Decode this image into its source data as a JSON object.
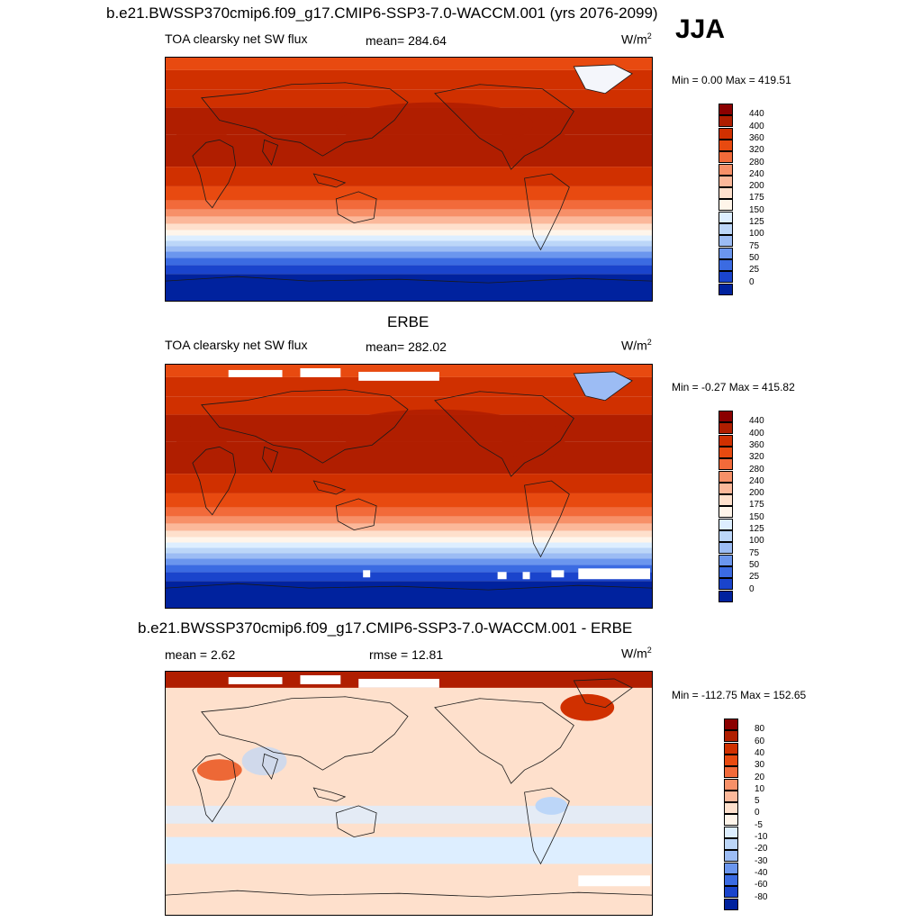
{
  "header": {
    "title": "b.e21.BWSSP370cmip6.f09_g17.CMIP6-SSP3-7.0-WACCM.001 (yrs 2076-2099)",
    "season": "JJA"
  },
  "panels": [
    {
      "id": "model",
      "title": "",
      "left_label": "TOA clearsky net SW flux",
      "center_label": "mean= 284.64",
      "units": "W/m",
      "units_sup": "2",
      "minmax": "Min =   0.00 Max = 419.51",
      "colorbar": {
        "ticks": [
          "440",
          "400",
          "360",
          "320",
          "280",
          "240",
          "200",
          "175",
          "150",
          "125",
          "100",
          "75",
          "50",
          "25",
          "0"
        ],
        "colors": [
          "#8b0000",
          "#b01e00",
          "#d03000",
          "#e84a10",
          "#f26a3a",
          "#f79068",
          "#fbb89a",
          "#fee0cc",
          "#fff5ea",
          "#ddeeff",
          "#bcd6f8",
          "#9cbcf4",
          "#6b96ee",
          "#3b6be2",
          "#1a44cc",
          "#00229e"
        ]
      }
    },
    {
      "id": "obs",
      "title": "ERBE",
      "left_label": "TOA clearsky net SW flux",
      "center_label": "mean= 282.02",
      "units": "W/m",
      "units_sup": "2",
      "minmax": "Min =  -0.27 Max = 415.82",
      "colorbar": {
        "ticks": [
          "440",
          "400",
          "360",
          "320",
          "280",
          "240",
          "200",
          "175",
          "150",
          "125",
          "100",
          "75",
          "50",
          "25",
          "0"
        ],
        "colors": [
          "#8b0000",
          "#b01e00",
          "#d03000",
          "#e84a10",
          "#f26a3a",
          "#f79068",
          "#fbb89a",
          "#fee0cc",
          "#fff5ea",
          "#ddeeff",
          "#bcd6f8",
          "#9cbcf4",
          "#6b96ee",
          "#3b6be2",
          "#1a44cc",
          "#00229e"
        ]
      }
    },
    {
      "id": "diff",
      "title": "b.e21.BWSSP370cmip6.f09_g17.CMIP6-SSP3-7.0-WACCM.001 - ERBE",
      "left_label": "mean =   2.62",
      "center_label": "rmse =  12.81",
      "units": "W/m",
      "units_sup": "2",
      "minmax": "Min = -112.75 Max = 152.65",
      "colorbar": {
        "ticks": [
          "80",
          "60",
          "40",
          "30",
          "20",
          "10",
          "5",
          "0",
          "-5",
          "-10",
          "-20",
          "-30",
          "-40",
          "-60",
          "-80"
        ],
        "colors": [
          "#8b0000",
          "#b01e00",
          "#d03000",
          "#e84a10",
          "#f26a3a",
          "#f79068",
          "#fbb89a",
          "#fee0cc",
          "#fff5ea",
          "#ddeeff",
          "#bcd6f8",
          "#9cbcf4",
          "#6b96ee",
          "#3b6be2",
          "#1a44cc",
          "#00229e"
        ]
      }
    }
  ]
}
